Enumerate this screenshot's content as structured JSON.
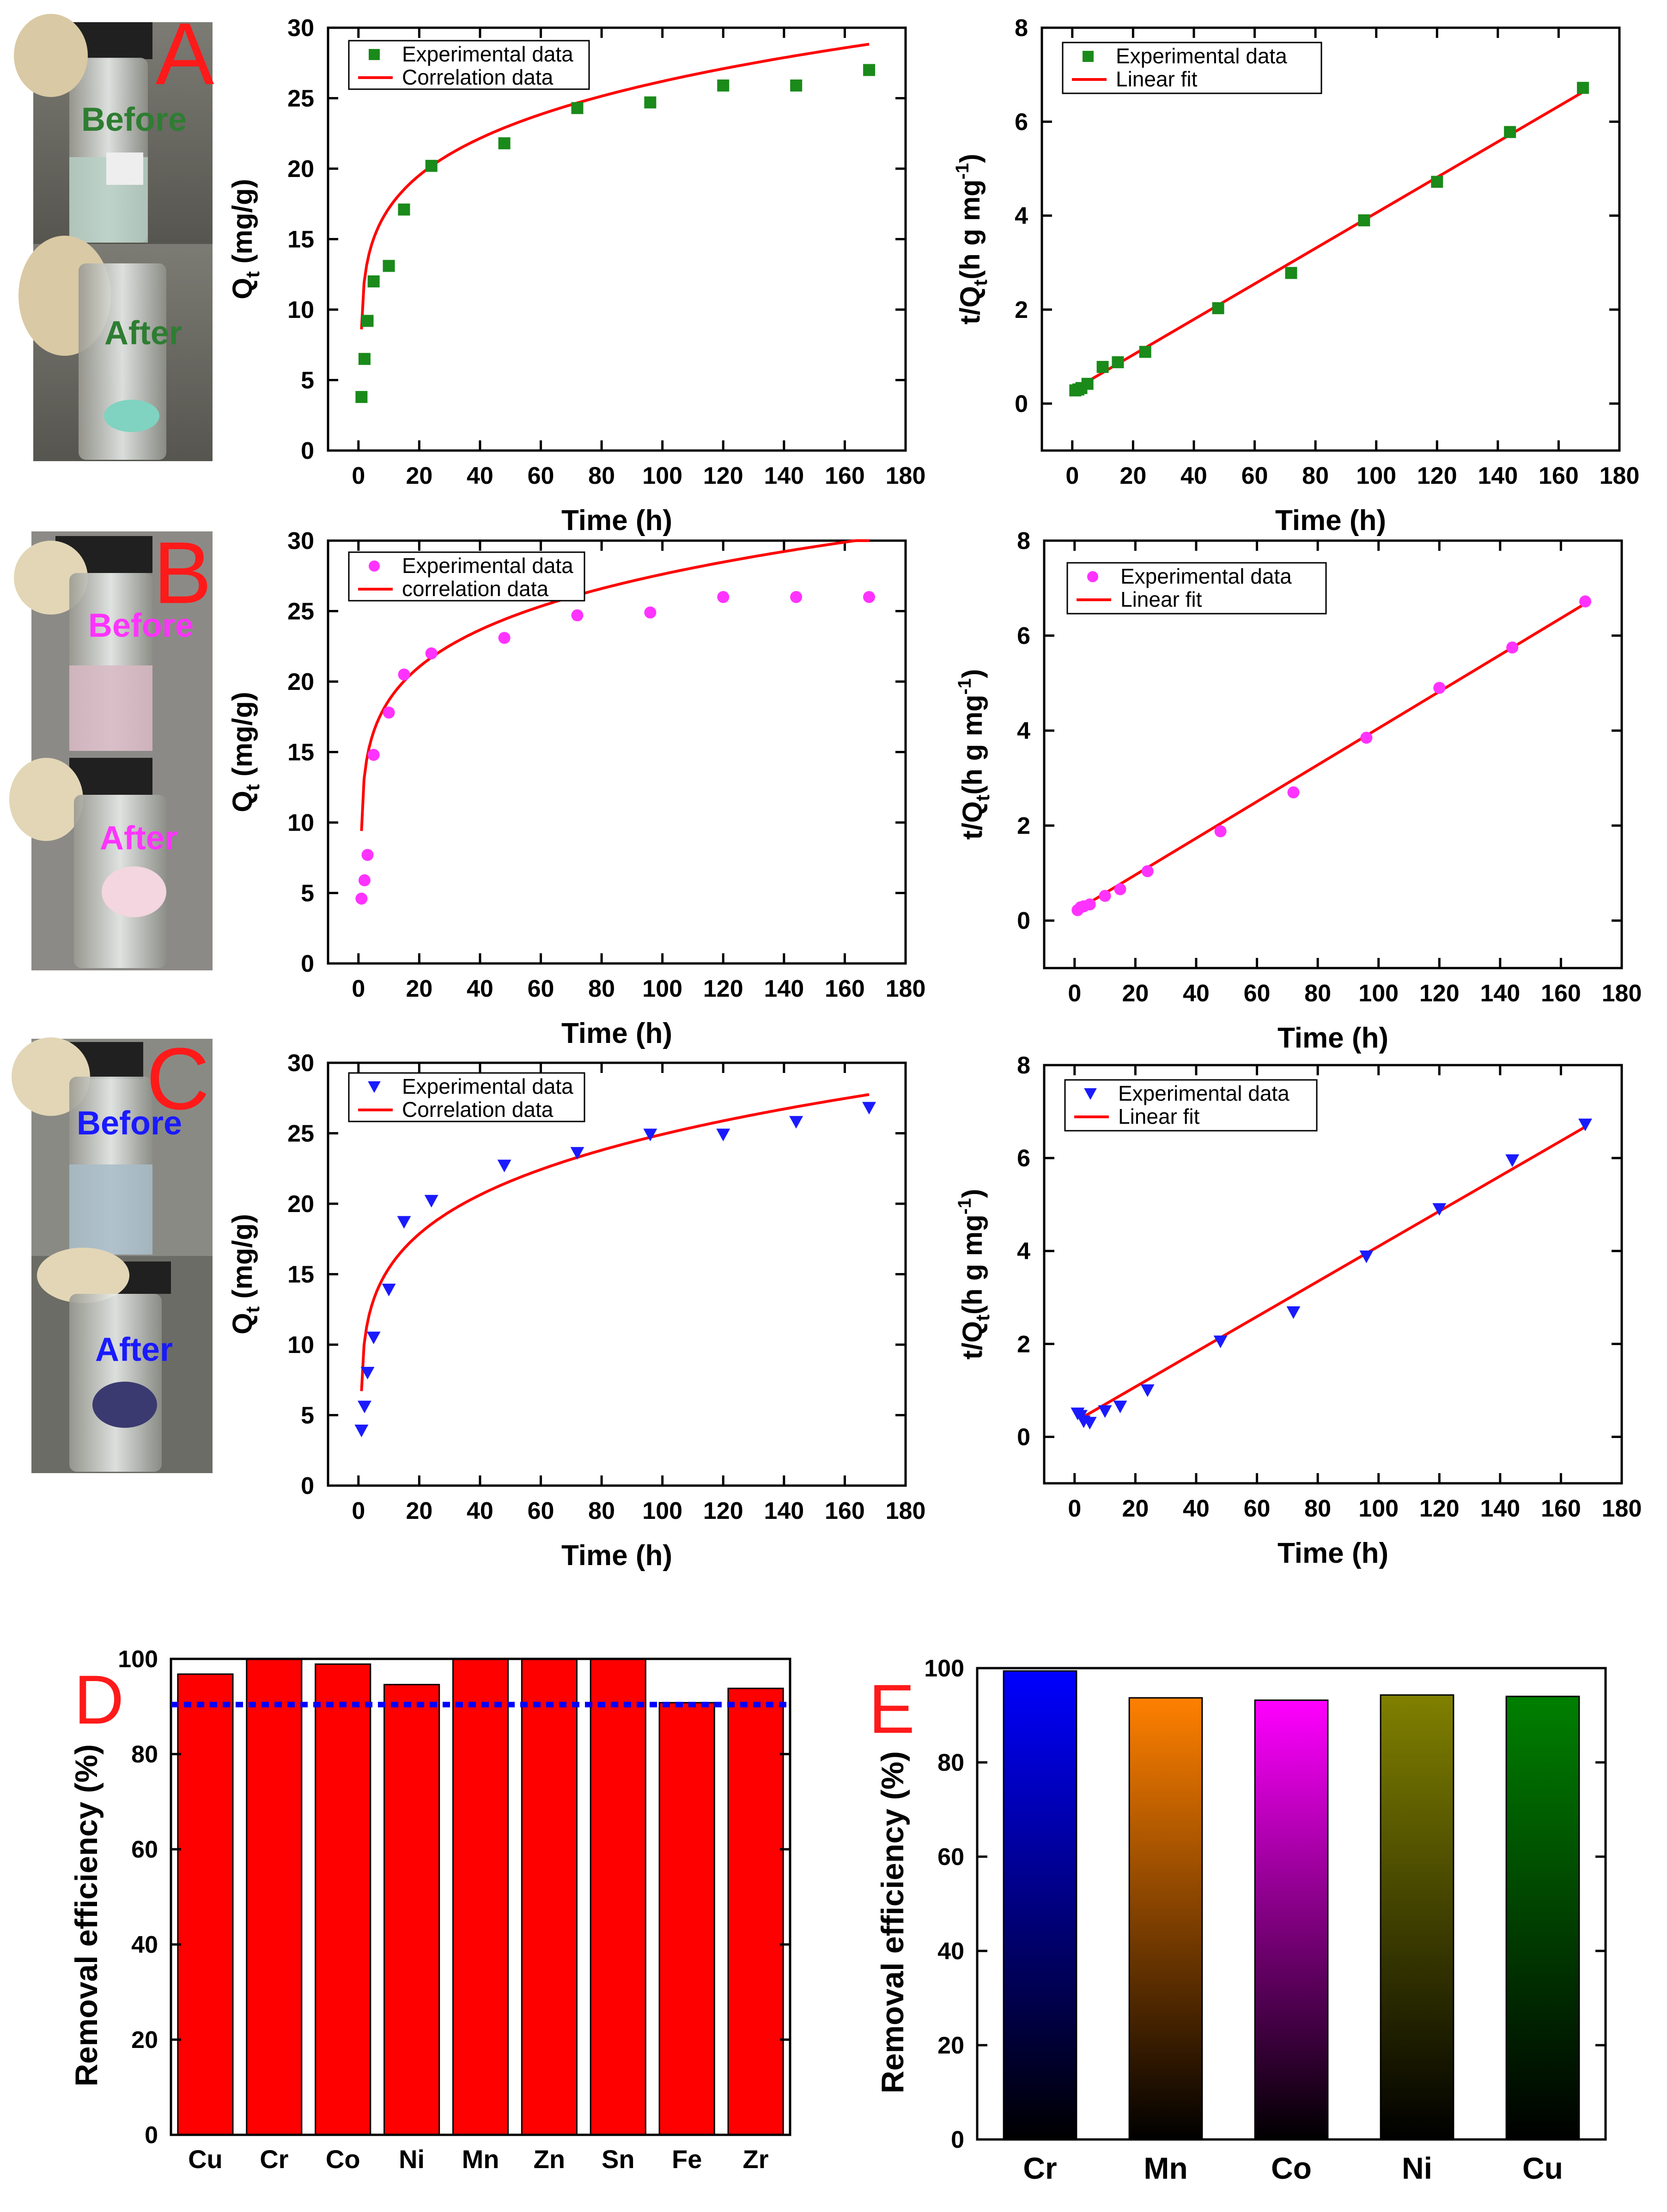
{
  "panels": [
    {
      "letter": "A",
      "photo_labels": {
        "before": "Before",
        "after": "After"
      },
      "photo_label_color": "#2e7d32",
      "marker_color": "#1a8a1a",
      "marker_shape": "square"
    },
    {
      "letter": "B",
      "photo_labels": {
        "before": "Before",
        "after": "After"
      },
      "photo_label_color": "#ff33ff",
      "marker_color": "#ff33ff",
      "marker_shape": "circle"
    },
    {
      "letter": "C",
      "photo_labels": {
        "before": "Before",
        "after": "After"
      },
      "photo_label_color": "#1a1aff",
      "marker_color": "#1a1aff",
      "marker_shape": "triangle-down"
    }
  ],
  "colors": {
    "fit_line": "#ff0000",
    "panel_letter": "#ff1a1a",
    "bar_red": "#ff0000",
    "dashed_line": "#0000ff"
  },
  "chart_data": [
    {
      "id": "A-kinetics",
      "type": "scatter",
      "xlabel": "Time (h)",
      "ylabel": "Qt (mg/g)",
      "ylabel_main": "Q",
      "ylabel_sub": "t",
      "ylabel_rest": "  (mg/g)",
      "xlim": [
        -10,
        180
      ],
      "ylim": [
        0,
        30
      ],
      "xticks": [
        0,
        20,
        40,
        60,
        80,
        100,
        120,
        140,
        160,
        180
      ],
      "yticks": [
        0,
        5,
        10,
        15,
        20,
        25,
        30
      ],
      "legend": [
        "Experimental data",
        "Correlation data"
      ],
      "points": {
        "x": [
          1,
          2,
          3,
          5,
          10,
          15,
          24,
          48,
          72,
          96,
          120,
          144,
          168
        ],
        "y": [
          3.8,
          6.5,
          9.2,
          12.0,
          13.1,
          17.1,
          20.2,
          21.8,
          24.3,
          24.7,
          25.9,
          25.9,
          27.0
        ]
      },
      "fit": {
        "kind": "power",
        "a": 3.0,
        "b": 9.0,
        "n": 0.206
      }
    },
    {
      "id": "A-linear",
      "type": "scatter",
      "xlabel": "Time (h)",
      "ylabel": "t/Qt(h g mg-1)",
      "ylabel_main": "t/Q",
      "ylabel_sub": "t",
      "ylabel_rest": "(h g mg",
      "ylabel_sup": "-1",
      "ylabel_close": ")",
      "xlim": [
        -10,
        180
      ],
      "ylim": [
        -1,
        8
      ],
      "xticks": [
        0,
        20,
        40,
        60,
        80,
        100,
        120,
        140,
        160,
        180
      ],
      "yticks": [
        0,
        2,
        4,
        6,
        8
      ],
      "legend": [
        "Experimental data",
        "Linear fit"
      ],
      "points": {
        "x": [
          1,
          2,
          3,
          5,
          10,
          15,
          24,
          48,
          72,
          96,
          120,
          144,
          168
        ],
        "y": [
          0.28,
          0.3,
          0.33,
          0.42,
          0.78,
          0.88,
          1.1,
          2.03,
          2.78,
          3.9,
          4.72,
          5.78,
          6.72
        ]
      },
      "fit": {
        "kind": "linear",
        "slope": 0.0378,
        "intercept": 0.28,
        "x0": 0,
        "x1": 168
      }
    },
    {
      "id": "B-kinetics",
      "type": "scatter",
      "xlabel": "Time (h)",
      "ylabel": "Qt (mg/g)",
      "ylabel_main": "Q",
      "ylabel_sub": "t",
      "ylabel_rest": "  (mg/g)",
      "xlim": [
        -10,
        180
      ],
      "ylim": [
        0,
        30
      ],
      "xticks": [
        0,
        20,
        40,
        60,
        80,
        100,
        120,
        140,
        160,
        180
      ],
      "yticks": [
        0,
        5,
        10,
        15,
        20,
        25,
        30
      ],
      "legend": [
        "Experimental data",
        "correlation data"
      ],
      "points": {
        "x": [
          1,
          2,
          3,
          5,
          10,
          15,
          24,
          48,
          72,
          96,
          120,
          144,
          168
        ],
        "y": [
          4.6,
          5.9,
          7.7,
          14.8,
          17.8,
          20.5,
          22.0,
          23.1,
          24.7,
          24.9,
          26.0,
          26.0,
          26.0
        ]
      },
      "fit": {
        "kind": "power",
        "a": 2.0,
        "b": 11.2,
        "n": 0.18
      }
    },
    {
      "id": "B-linear",
      "type": "scatter",
      "xlabel": "Time (h)",
      "ylabel": "t/Qt(h g mg-1)",
      "ylabel_main": "t/Q",
      "ylabel_sub": "t",
      "ylabel_rest": "(h g mg",
      "ylabel_sup": "-1",
      "ylabel_close": ")",
      "xlim": [
        -10,
        180
      ],
      "ylim": [
        -1,
        8
      ],
      "xticks": [
        0,
        20,
        40,
        60,
        80,
        100,
        120,
        140,
        160,
        180
      ],
      "yticks": [
        0,
        2,
        4,
        6,
        8
      ],
      "legend": [
        "Experimental data",
        "Linear fit"
      ],
      "points": {
        "x": [
          1,
          2,
          3,
          5,
          10,
          15,
          24,
          48,
          72,
          96,
          120,
          144,
          168
        ],
        "y": [
          0.22,
          0.28,
          0.3,
          0.34,
          0.52,
          0.66,
          1.04,
          1.88,
          2.7,
          3.85,
          4.9,
          5.75,
          6.72
        ]
      },
      "fit": {
        "kind": "linear",
        "slope": 0.0386,
        "intercept": 0.19,
        "x0": 0,
        "x1": 168
      }
    },
    {
      "id": "C-kinetics",
      "type": "scatter",
      "xlabel": "Time (h)",
      "ylabel": "Qt (mg/g)",
      "ylabel_main": "Q",
      "ylabel_sub": "t",
      "ylabel_rest": "  (mg/g)",
      "xlim": [
        -10,
        180
      ],
      "ylim": [
        0,
        30
      ],
      "xticks": [
        0,
        20,
        40,
        60,
        80,
        100,
        120,
        140,
        160,
        180
      ],
      "yticks": [
        0,
        5,
        10,
        15,
        20,
        25,
        30
      ],
      "legend": [
        "Experimental data",
        "Correlation data"
      ],
      "points": {
        "x": [
          1,
          2,
          3,
          5,
          10,
          15,
          24,
          48,
          72,
          96,
          120,
          144,
          168
        ],
        "y": [
          3.9,
          5.6,
          8.0,
          10.5,
          13.9,
          18.7,
          20.2,
          22.7,
          23.6,
          24.9,
          24.9,
          25.8,
          26.8
        ]
      },
      "fit": {
        "kind": "power",
        "a": 1.5,
        "b": 8.6,
        "n": 0.218
      }
    },
    {
      "id": "C-linear",
      "type": "scatter",
      "xlabel": "Time (h)",
      "ylabel": "t/Qt(h g mg-1)",
      "ylabel_main": "t/Q",
      "ylabel_sub": "t",
      "ylabel_rest": "(h g mg",
      "ylabel_sup": "-1",
      "ylabel_close": ")",
      "xlim": [
        -10,
        180
      ],
      "ylim": [
        -1,
        8
      ],
      "xticks": [
        0,
        20,
        40,
        60,
        80,
        100,
        120,
        140,
        160,
        180
      ],
      "yticks": [
        0,
        2,
        4,
        6,
        8
      ],
      "legend": [
        "Experimental data",
        "Linear fit"
      ],
      "points": {
        "x": [
          1,
          2,
          3,
          5,
          10,
          15,
          24,
          48,
          72,
          96,
          120,
          144,
          168
        ],
        "y": [
          0.5,
          0.45,
          0.33,
          0.3,
          0.55,
          0.65,
          1.0,
          2.05,
          2.68,
          3.88,
          4.9,
          5.95,
          6.72
        ]
      },
      "fit": {
        "kind": "linear",
        "slope": 0.0378,
        "intercept": 0.32,
        "x0": 2,
        "x1": 168
      }
    },
    {
      "id": "D-removal",
      "letter": "D",
      "type": "bar",
      "ylabel": "Removal efficiency (%)",
      "ylim": [
        0,
        100
      ],
      "yticks": [
        0,
        20,
        40,
        60,
        80,
        100
      ],
      "categories": [
        "Cu",
        "Cr",
        "Co",
        "Ni",
        "Mn",
        "Zn",
        "Sn",
        "Fe",
        "Zr"
      ],
      "values": [
        96.8,
        99.9,
        98.9,
        94.6,
        99.9,
        99.9,
        99.9,
        90.8,
        93.8
      ],
      "threshold": 90.4
    },
    {
      "id": "E-removal",
      "letter": "E",
      "type": "bar",
      "ylabel": "Removal efficiency (%)",
      "ylim": [
        0,
        100
      ],
      "yticks": [
        0,
        20,
        40,
        60,
        80,
        100
      ],
      "categories": [
        "Cr",
        "Mn",
        "Co",
        "Ni",
        "Cu"
      ],
      "values": [
        99.4,
        93.7,
        93.2,
        94.3,
        94.0
      ],
      "bar_colors": [
        "#0000ff",
        "#ff8000",
        "#ff00ff",
        "#808000",
        "#008000"
      ]
    }
  ]
}
